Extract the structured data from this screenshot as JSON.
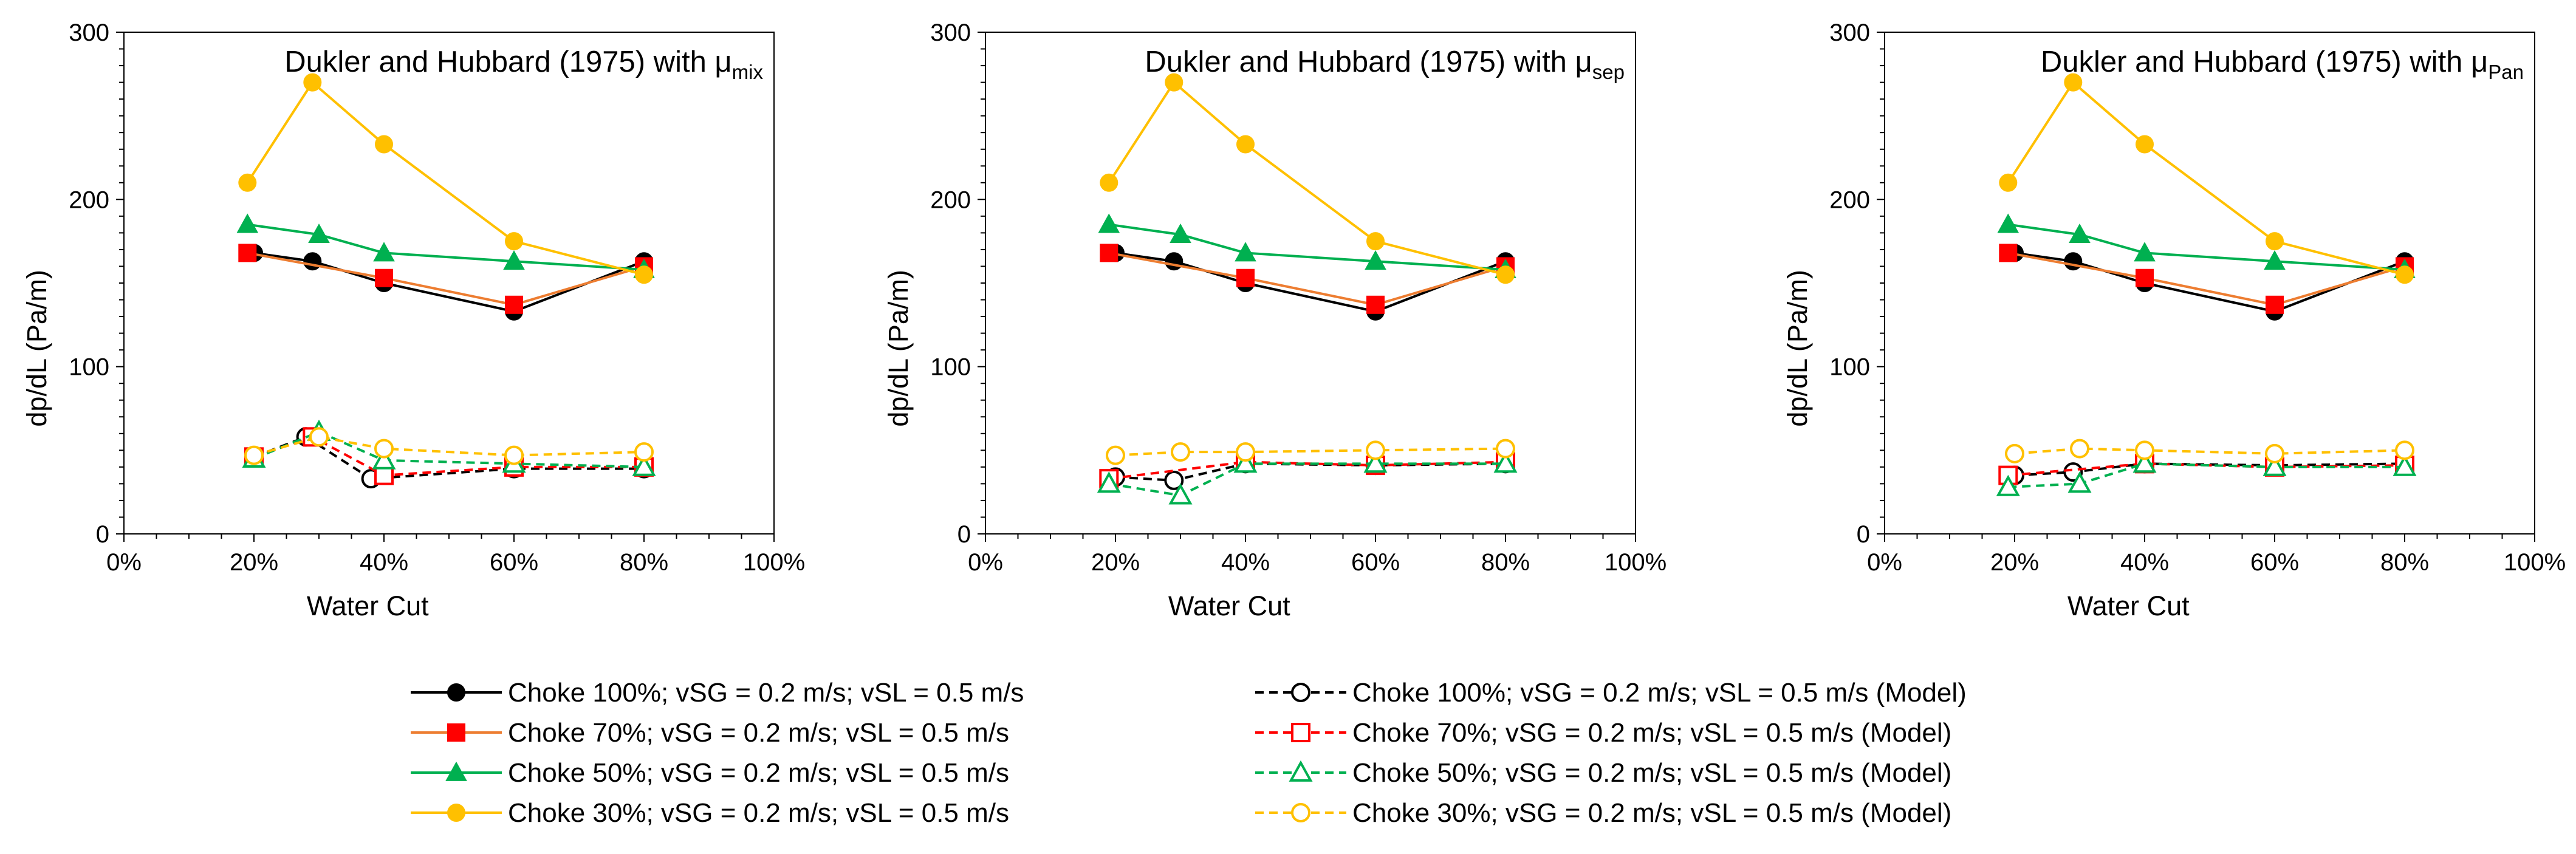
{
  "figure": {
    "legend_columns": 2
  },
  "chart_data": [
    {
      "type": "line",
      "title_prefix": "Dukler and Hubbard (1975) with μ",
      "title_subscript": "mix",
      "xlabel": "Water Cut",
      "ylabel": "dp/dL (Pa/m)",
      "xlim": [
        0,
        100
      ],
      "ylim": [
        0,
        300
      ],
      "x_ticks": [
        0,
        20,
        40,
        60,
        80,
        100
      ],
      "x_tick_labels": [
        "0%",
        "20%",
        "40%",
        "60%",
        "80%",
        "100%"
      ],
      "y_ticks": [
        0,
        100,
        200,
        300
      ],
      "y_tick_labels": [
        "0",
        "100",
        "200",
        "300"
      ],
      "series": [
        {
          "name": "Choke 100%; vSG = 0.2 m/s; vSL = 0.5 m/s",
          "color": "#000000",
          "marker": "circle",
          "filled": true,
          "dashed": false,
          "x": [
            20,
            29,
            40,
            60,
            80
          ],
          "values": [
            168,
            163,
            150,
            133,
            163
          ]
        },
        {
          "name": "Choke 70%; vSG = 0.2 m/s; vSL = 0.5 m/s",
          "color": "#FF0000",
          "line_color": "#ED7D31",
          "marker": "square",
          "filled": true,
          "dashed": false,
          "x": [
            19,
            40,
            60,
            80
          ],
          "values": [
            168,
            153,
            137,
            160
          ]
        },
        {
          "name": "Choke 50%; vSG = 0.2 m/s; vSL = 0.5 m/s",
          "color": "#00B050",
          "marker": "triangle",
          "filled": true,
          "dashed": false,
          "x": [
            19,
            30,
            40,
            60,
            80
          ],
          "values": [
            185,
            179,
            168,
            163,
            158
          ]
        },
        {
          "name": "Choke 30%; vSG = 0.2 m/s; vSL = 0.5 m/s",
          "color": "#FFC000",
          "marker": "circle",
          "filled": true,
          "dashed": false,
          "x": [
            19,
            29,
            40,
            60,
            80
          ],
          "values": [
            210,
            270,
            233,
            175,
            155
          ]
        },
        {
          "name": "Choke 100%; vSG = 0.2 m/s; vSL = 0.5 m/s (Model)",
          "color": "#000000",
          "marker": "circle",
          "filled": false,
          "dashed": true,
          "x": [
            20,
            28,
            38,
            60,
            80
          ],
          "values": [
            46,
            58,
            33,
            39,
            39
          ]
        },
        {
          "name": "Choke 70%; vSG = 0.2 m/s; vSL = 0.5 m/s (Model)",
          "color": "#FF0000",
          "marker": "square",
          "filled": false,
          "dashed": true,
          "x": [
            20,
            29,
            40,
            60,
            80
          ],
          "values": [
            46,
            58,
            35,
            40,
            40
          ]
        },
        {
          "name": "Choke 50%; vSG = 0.2 m/s; vSL = 0.5 m/s (Model)",
          "color": "#00B050",
          "marker": "triangle",
          "filled": false,
          "dashed": true,
          "x": [
            20,
            30,
            40,
            60,
            80
          ],
          "values": [
            45,
            61,
            44,
            42,
            40
          ]
        },
        {
          "name": "Choke 30%; vSG = 0.2 m/s; vSL = 0.5 m/s (Model)",
          "color": "#FFC000",
          "marker": "circle",
          "filled": false,
          "dashed": true,
          "x": [
            20,
            30,
            40,
            60,
            80
          ],
          "values": [
            47,
            58,
            51,
            47,
            49
          ]
        }
      ]
    },
    {
      "type": "line",
      "title_prefix": "Dukler and Hubbard (1975) with μ",
      "title_subscript": "sep",
      "xlabel": "Water Cut",
      "ylabel": "dp/dL (Pa/m)",
      "xlim": [
        0,
        100
      ],
      "ylim": [
        0,
        300
      ],
      "x_ticks": [
        0,
        20,
        40,
        60,
        80,
        100
      ],
      "x_tick_labels": [
        "0%",
        "20%",
        "40%",
        "60%",
        "80%",
        "100%"
      ],
      "y_ticks": [
        0,
        100,
        200,
        300
      ],
      "y_tick_labels": [
        "0",
        "100",
        "200",
        "300"
      ],
      "series": [
        {
          "name": "Choke 100%; vSG = 0.2 m/s; vSL = 0.5 m/s",
          "color": "#000000",
          "marker": "circle",
          "filled": true,
          "dashed": false,
          "x": [
            20,
            29,
            40,
            60,
            80
          ],
          "values": [
            168,
            163,
            150,
            133,
            163
          ]
        },
        {
          "name": "Choke 70%; vSG = 0.2 m/s; vSL = 0.5 m/s",
          "color": "#FF0000",
          "line_color": "#ED7D31",
          "marker": "square",
          "filled": true,
          "dashed": false,
          "x": [
            19,
            40,
            60,
            80
          ],
          "values": [
            168,
            153,
            137,
            160
          ]
        },
        {
          "name": "Choke 50%; vSG = 0.2 m/s; vSL = 0.5 m/s",
          "color": "#00B050",
          "marker": "triangle",
          "filled": true,
          "dashed": false,
          "x": [
            19,
            30,
            40,
            60,
            80
          ],
          "values": [
            185,
            179,
            168,
            163,
            158
          ]
        },
        {
          "name": "Choke 30%; vSG = 0.2 m/s; vSL = 0.5 m/s",
          "color": "#FFC000",
          "marker": "circle",
          "filled": true,
          "dashed": false,
          "x": [
            19,
            29,
            40,
            60,
            80
          ],
          "values": [
            210,
            270,
            233,
            175,
            155
          ]
        },
        {
          "name": "Choke 100%; vSG = 0.2 m/s; vSL = 0.5 m/s (Model)",
          "color": "#000000",
          "marker": "circle",
          "filled": false,
          "dashed": true,
          "x": [
            20,
            29,
            40,
            60,
            80
          ],
          "values": [
            34,
            32,
            42,
            41,
            42
          ]
        },
        {
          "name": "Choke 70%; vSG = 0.2 m/s; vSL = 0.5 m/s (Model)",
          "color": "#FF0000",
          "marker": "square",
          "filled": false,
          "dashed": true,
          "x": [
            19,
            40,
            60,
            80
          ],
          "values": [
            33,
            43,
            41,
            43
          ]
        },
        {
          "name": "Choke 50%; vSG = 0.2 m/s; vSL = 0.5 m/s (Model)",
          "color": "#00B050",
          "marker": "triangle",
          "filled": false,
          "dashed": true,
          "x": [
            19,
            30,
            40,
            60,
            80
          ],
          "values": [
            30,
            23,
            42,
            42,
            42
          ]
        },
        {
          "name": "Choke 30%; vSG = 0.2 m/s; vSL = 0.5 m/s (Model)",
          "color": "#FFC000",
          "marker": "circle",
          "filled": false,
          "dashed": true,
          "x": [
            20,
            30,
            40,
            60,
            80
          ],
          "values": [
            47,
            49,
            49,
            50,
            51
          ]
        }
      ]
    },
    {
      "type": "line",
      "title_prefix": "Dukler and Hubbard (1975) with μ",
      "title_subscript": "Pan",
      "xlabel": "Water Cut",
      "ylabel": "dp/dL (Pa/m)",
      "xlim": [
        0,
        100
      ],
      "ylim": [
        0,
        300
      ],
      "x_ticks": [
        0,
        20,
        40,
        60,
        80,
        100
      ],
      "x_tick_labels": [
        "0%",
        "20%",
        "40%",
        "60%",
        "80%",
        "100%"
      ],
      "y_ticks": [
        0,
        100,
        200,
        300
      ],
      "y_tick_labels": [
        "0",
        "100",
        "200",
        "300"
      ],
      "series": [
        {
          "name": "Choke 100%; vSG = 0.2 m/s; vSL = 0.5 m/s",
          "color": "#000000",
          "marker": "circle",
          "filled": true,
          "dashed": false,
          "x": [
            20,
            29,
            40,
            60,
            80
          ],
          "values": [
            168,
            163,
            150,
            133,
            163
          ]
        },
        {
          "name": "Choke 70%; vSG = 0.2 m/s; vSL = 0.5 m/s",
          "color": "#FF0000",
          "line_color": "#ED7D31",
          "marker": "square",
          "filled": true,
          "dashed": false,
          "x": [
            19,
            40,
            60,
            80
          ],
          "values": [
            168,
            153,
            137,
            160
          ]
        },
        {
          "name": "Choke 50%; vSG = 0.2 m/s; vSL = 0.5 m/s",
          "color": "#00B050",
          "marker": "triangle",
          "filled": true,
          "dashed": false,
          "x": [
            19,
            30,
            40,
            60,
            80
          ],
          "values": [
            185,
            179,
            168,
            163,
            158
          ]
        },
        {
          "name": "Choke 30%; vSG = 0.2 m/s; vSL = 0.5 m/s",
          "color": "#FFC000",
          "marker": "circle",
          "filled": true,
          "dashed": false,
          "x": [
            19,
            29,
            40,
            60,
            80
          ],
          "values": [
            210,
            270,
            233,
            175,
            155
          ]
        },
        {
          "name": "Choke 100%; vSG = 0.2 m/s; vSL = 0.5 m/s (Model)",
          "color": "#000000",
          "marker": "circle",
          "filled": false,
          "dashed": true,
          "x": [
            20,
            29,
            40,
            60,
            80
          ],
          "values": [
            35,
            37,
            42,
            41,
            42
          ]
        },
        {
          "name": "Choke 70%; vSG = 0.2 m/s; vSL = 0.5 m/s (Model)",
          "color": "#FF0000",
          "marker": "square",
          "filled": false,
          "dashed": true,
          "x": [
            19,
            40,
            60,
            80
          ],
          "values": [
            35,
            42,
            40,
            41
          ]
        },
        {
          "name": "Choke 50%; vSG = 0.2 m/s; vSL = 0.5 m/s (Model)",
          "color": "#00B050",
          "marker": "triangle",
          "filled": false,
          "dashed": true,
          "x": [
            19,
            30,
            40,
            60,
            80
          ],
          "values": [
            28,
            30,
            42,
            40,
            40
          ]
        },
        {
          "name": "Choke 30%; vSG = 0.2 m/s; vSL = 0.5 m/s (Model)",
          "color": "#FFC000",
          "marker": "circle",
          "filled": false,
          "dashed": true,
          "x": [
            20,
            30,
            40,
            60,
            80
          ],
          "values": [
            48,
            51,
            50,
            48,
            50
          ]
        }
      ]
    }
  ],
  "legend": [
    {
      "label": "Choke 100%; vSG = 0.2 m/s; vSL = 0.5 m/s",
      "color": "#000000",
      "line_color": "#000000",
      "marker": "circle",
      "filled": true,
      "dashed": false
    },
    {
      "label": "Choke 100%; vSG = 0.2 m/s; vSL = 0.5 m/s (Model)",
      "color": "#000000",
      "line_color": "#000000",
      "marker": "circle",
      "filled": false,
      "dashed": true
    },
    {
      "label": "Choke 70%; vSG = 0.2 m/s; vSL = 0.5 m/s",
      "color": "#FF0000",
      "line_color": "#ED7D31",
      "marker": "square",
      "filled": true,
      "dashed": false
    },
    {
      "label": "Choke 70%; vSG = 0.2 m/s; vSL = 0.5 m/s (Model)",
      "color": "#FF0000",
      "line_color": "#FF0000",
      "marker": "square",
      "filled": false,
      "dashed": true
    },
    {
      "label": "Choke 50%; vSG = 0.2 m/s; vSL = 0.5 m/s",
      "color": "#00B050",
      "line_color": "#00B050",
      "marker": "triangle",
      "filled": true,
      "dashed": false
    },
    {
      "label": "Choke 50%; vSG = 0.2 m/s; vSL = 0.5 m/s (Model)",
      "color": "#00B050",
      "line_color": "#00B050",
      "marker": "triangle",
      "filled": false,
      "dashed": true
    },
    {
      "label": "Choke 30%; vSG = 0.2 m/s; vSL = 0.5 m/s",
      "color": "#FFC000",
      "line_color": "#FFC000",
      "marker": "circle",
      "filled": true,
      "dashed": false
    },
    {
      "label": "Choke 30%; vSG = 0.2 m/s; vSL = 0.5 m/s (Model)",
      "color": "#FFC000",
      "line_color": "#FFC000",
      "marker": "circle",
      "filled": false,
      "dashed": true
    }
  ]
}
